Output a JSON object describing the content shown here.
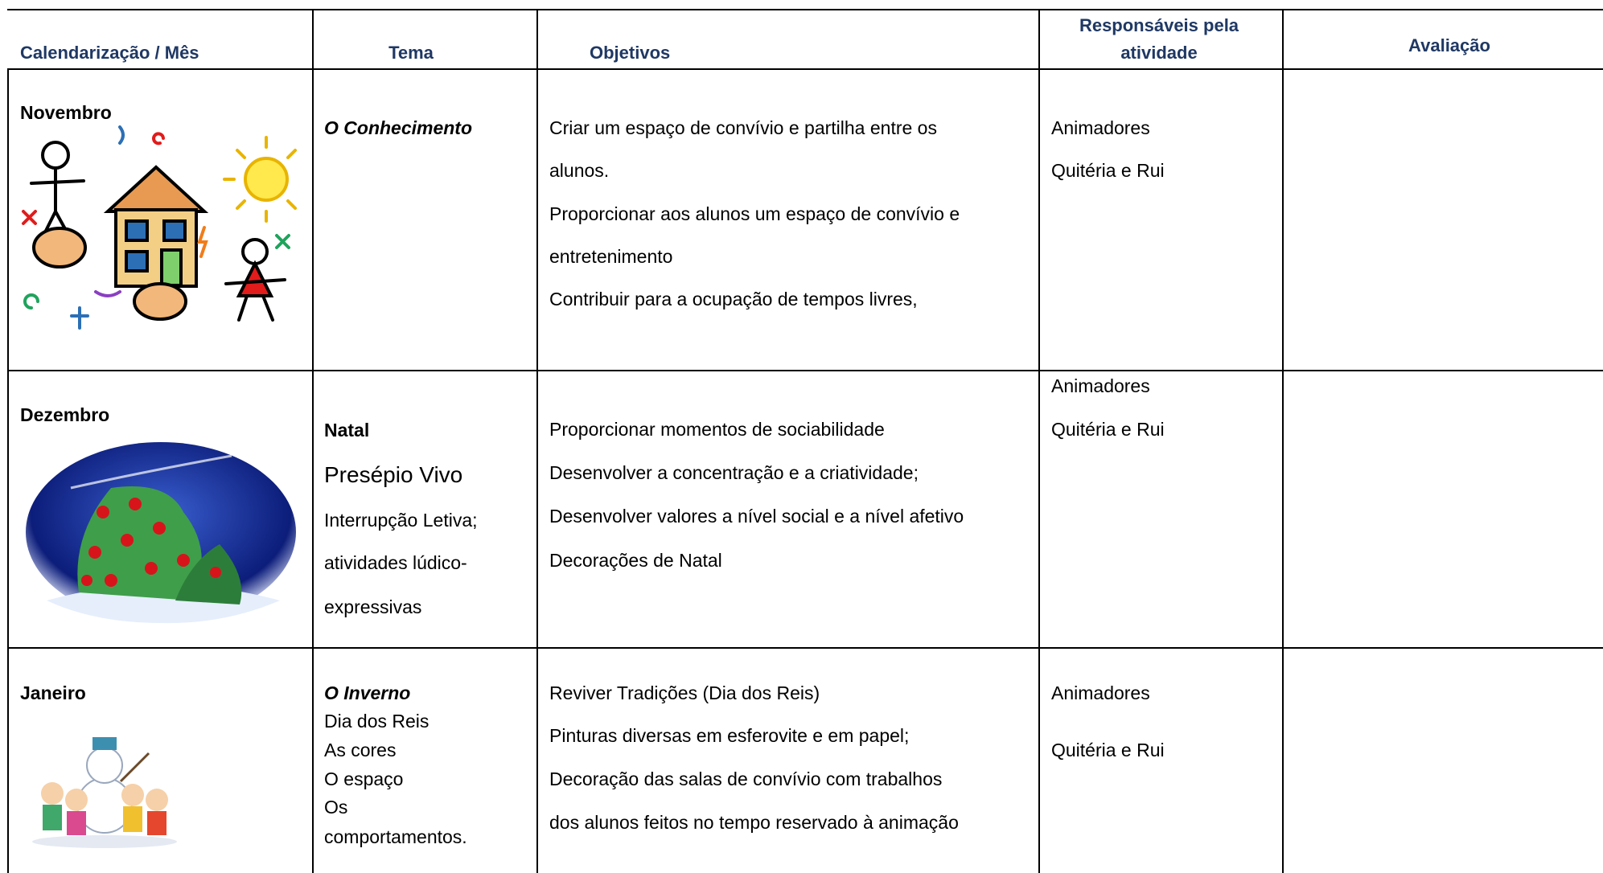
{
  "table": {
    "headers": [
      "Calendarização / Mês",
      "Tema",
      "Objetivos",
      "Responsáveis pela",
      "atividade",
      "Avaliação"
    ],
    "rows": [
      {
        "month": "Novembro",
        "theme": [
          "O Conhecimento"
        ],
        "objectives": [
          "Criar um espaço de convívio e partilha entre os",
          "alunos.",
          "Proporcionar aos alunos um espaço de convívio e",
          "entretenimento",
          "Contribuir para a ocupação de tempos livres,"
        ],
        "responsible": [
          "Animadores",
          "Quitéria e Rui"
        ]
      },
      {
        "month": "Dezembro",
        "theme": [
          "Natal",
          "Presépio Vivo",
          "Interrupção Letiva;",
          "atividades lúdico-",
          "expressivas"
        ],
        "objectives": [
          "Proporcionar momentos de sociabilidade",
          "Desenvolver a concentração e a criatividade;",
          "Desenvolver valores a nível social e a nível afetivo",
          "Decorações de Natal"
        ],
        "responsible": [
          "Animadores",
          "Quitéria e Rui"
        ]
      },
      {
        "month": "Janeiro",
        "theme": [
          "O Inverno",
          "Dia dos Reis",
          "As cores",
          "O espaço",
          "Os",
          "comportamentos."
        ],
        "objectives": [
          "Reviver Tradições (Dia dos Reis)",
          "Pinturas diversas em esferovite e em papel;",
          "Decoração das salas de convívio com trabalhos",
          "dos alunos feitos no tempo reservado à animação"
        ],
        "responsible": [
          "Animadores",
          "Quitéria e Rui"
        ]
      }
    ]
  }
}
